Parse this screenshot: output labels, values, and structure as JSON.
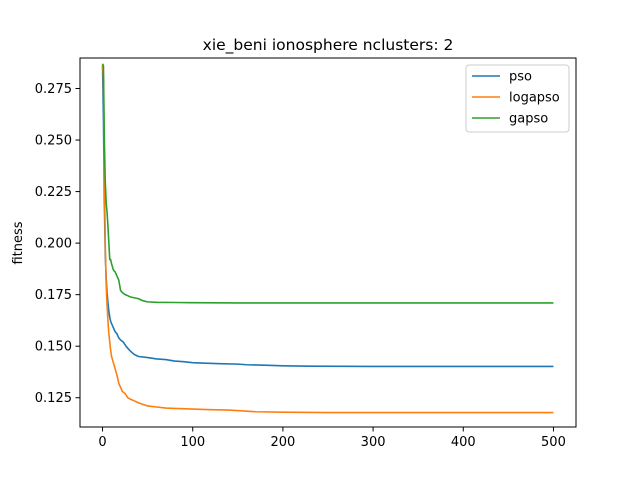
{
  "chart_data": {
    "type": "line",
    "title": "xie_beni ionosphere nclusters: 2",
    "xlabel": "",
    "ylabel": "fitness",
    "xlim": [
      -25,
      525
    ],
    "ylim": [
      0.1108,
      0.2898
    ],
    "xticks": [
      0,
      100,
      200,
      300,
      400,
      500
    ],
    "yticks": [
      0.125,
      0.15,
      0.175,
      0.2,
      0.225,
      0.25,
      0.275
    ],
    "xtick_labels": [
      "0",
      "100",
      "200",
      "300",
      "400",
      "500"
    ],
    "ytick_labels": [
      "0.125",
      "0.150",
      "0.175",
      "0.200",
      "0.225",
      "0.250",
      "0.275"
    ],
    "grid": false,
    "legend_position": "top-right",
    "series": [
      {
        "name": "pso",
        "color": "#1f77b4",
        "x": [
          0,
          1,
          2,
          3,
          4,
          5,
          6,
          7,
          8,
          9,
          10,
          12,
          14,
          16,
          18,
          20,
          23,
          26,
          30,
          35,
          40,
          50,
          60,
          70,
          80,
          90,
          100,
          110,
          130,
          150,
          160,
          180,
          200,
          230,
          300,
          400,
          500
        ],
        "y": [
          0.286,
          0.26,
          0.22,
          0.195,
          0.183,
          0.176,
          0.171,
          0.167,
          0.164,
          0.162,
          0.161,
          0.159,
          0.157,
          0.156,
          0.154,
          0.153,
          0.152,
          0.15,
          0.148,
          0.146,
          0.145,
          0.1445,
          0.1438,
          0.1435,
          0.1428,
          0.1425,
          0.142,
          0.1418,
          0.1415,
          0.1413,
          0.141,
          0.1408,
          0.1405,
          0.1403,
          0.1402,
          0.1402,
          0.1402
        ]
      },
      {
        "name": "logapso",
        "color": "#ff7f0e",
        "x": [
          0,
          1,
          2,
          3,
          4,
          5,
          6,
          7,
          8,
          9,
          10,
          12,
          14,
          16,
          18,
          20,
          22,
          25,
          28,
          30,
          35,
          40,
          50,
          60,
          70,
          80,
          100,
          120,
          140,
          170,
          200,
          250,
          300,
          400,
          500
        ],
        "y": [
          0.287,
          0.28,
          0.24,
          0.2,
          0.18,
          0.17,
          0.162,
          0.156,
          0.152,
          0.148,
          0.145,
          0.142,
          0.139,
          0.136,
          0.132,
          0.13,
          0.128,
          0.127,
          0.125,
          0.1245,
          0.1235,
          0.1225,
          0.121,
          0.1205,
          0.12,
          0.1198,
          0.1195,
          0.1192,
          0.119,
          0.1182,
          0.118,
          0.1178,
          0.1178,
          0.1178,
          0.1178
        ]
      },
      {
        "name": "gapso",
        "color": "#2ca02c",
        "x": [
          0,
          1,
          2,
          3,
          4,
          5,
          6,
          7,
          8,
          9,
          10,
          12,
          14,
          16,
          18,
          20,
          22,
          25,
          28,
          30,
          35,
          40,
          45,
          50,
          60,
          80,
          100,
          150,
          200,
          300,
          400,
          500
        ],
        "y": [
          0.287,
          0.286,
          0.25,
          0.23,
          0.22,
          0.215,
          0.208,
          0.2,
          0.192,
          0.192,
          0.19,
          0.187,
          0.186,
          0.184,
          0.182,
          0.177,
          0.176,
          0.175,
          0.1745,
          0.174,
          0.1735,
          0.173,
          0.172,
          0.1715,
          0.1713,
          0.1712,
          0.1711,
          0.171,
          0.171,
          0.171,
          0.171,
          0.171
        ]
      }
    ]
  }
}
